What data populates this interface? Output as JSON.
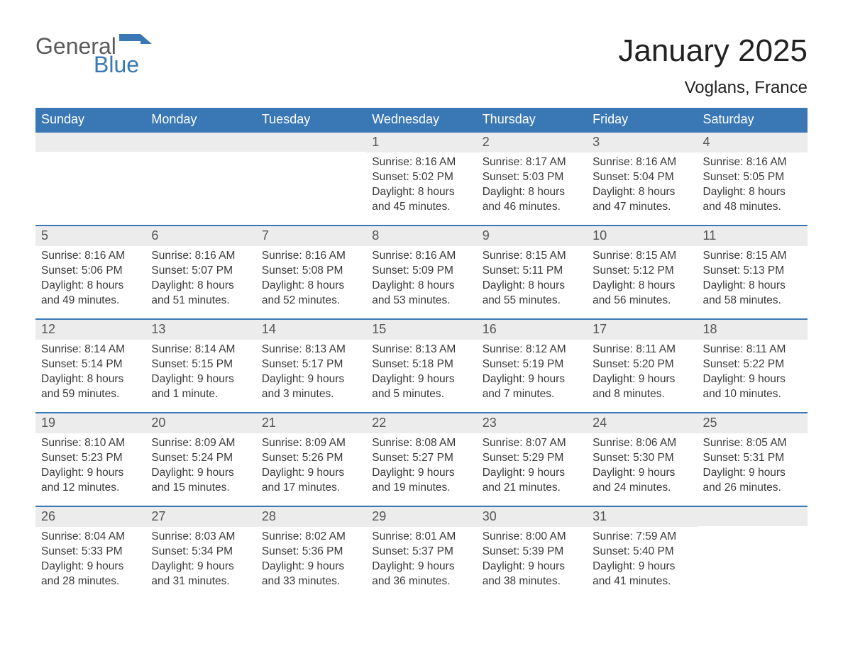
{
  "brand": {
    "top": "General",
    "bottom": "Blue",
    "icon_color": "#3a78b5"
  },
  "title": "January 2025",
  "subtitle": "Voglans, France",
  "colors": {
    "header_bg": "#3a78b5",
    "header_text": "#ffffff",
    "daynum_bg": "#ececec",
    "row_border": "#3a78b5",
    "body_text": "#3a3a3a"
  },
  "columns": [
    "Sunday",
    "Monday",
    "Tuesday",
    "Wednesday",
    "Thursday",
    "Friday",
    "Saturday"
  ],
  "weeks": [
    [
      null,
      null,
      null,
      {
        "n": "1",
        "sunrise": "8:16 AM",
        "sunset": "5:02 PM",
        "daylight": "8 hours and 45 minutes."
      },
      {
        "n": "2",
        "sunrise": "8:17 AM",
        "sunset": "5:03 PM",
        "daylight": "8 hours and 46 minutes."
      },
      {
        "n": "3",
        "sunrise": "8:16 AM",
        "sunset": "5:04 PM",
        "daylight": "8 hours and 47 minutes."
      },
      {
        "n": "4",
        "sunrise": "8:16 AM",
        "sunset": "5:05 PM",
        "daylight": "8 hours and 48 minutes."
      }
    ],
    [
      {
        "n": "5",
        "sunrise": "8:16 AM",
        "sunset": "5:06 PM",
        "daylight": "8 hours and 49 minutes."
      },
      {
        "n": "6",
        "sunrise": "8:16 AM",
        "sunset": "5:07 PM",
        "daylight": "8 hours and 51 minutes."
      },
      {
        "n": "7",
        "sunrise": "8:16 AM",
        "sunset": "5:08 PM",
        "daylight": "8 hours and 52 minutes."
      },
      {
        "n": "8",
        "sunrise": "8:16 AM",
        "sunset": "5:09 PM",
        "daylight": "8 hours and 53 minutes."
      },
      {
        "n": "9",
        "sunrise": "8:15 AM",
        "sunset": "5:11 PM",
        "daylight": "8 hours and 55 minutes."
      },
      {
        "n": "10",
        "sunrise": "8:15 AM",
        "sunset": "5:12 PM",
        "daylight": "8 hours and 56 minutes."
      },
      {
        "n": "11",
        "sunrise": "8:15 AM",
        "sunset": "5:13 PM",
        "daylight": "8 hours and 58 minutes."
      }
    ],
    [
      {
        "n": "12",
        "sunrise": "8:14 AM",
        "sunset": "5:14 PM",
        "daylight": "8 hours and 59 minutes."
      },
      {
        "n": "13",
        "sunrise": "8:14 AM",
        "sunset": "5:15 PM",
        "daylight": "9 hours and 1 minute."
      },
      {
        "n": "14",
        "sunrise": "8:13 AM",
        "sunset": "5:17 PM",
        "daylight": "9 hours and 3 minutes."
      },
      {
        "n": "15",
        "sunrise": "8:13 AM",
        "sunset": "5:18 PM",
        "daylight": "9 hours and 5 minutes."
      },
      {
        "n": "16",
        "sunrise": "8:12 AM",
        "sunset": "5:19 PM",
        "daylight": "9 hours and 7 minutes."
      },
      {
        "n": "17",
        "sunrise": "8:11 AM",
        "sunset": "5:20 PM",
        "daylight": "9 hours and 8 minutes."
      },
      {
        "n": "18",
        "sunrise": "8:11 AM",
        "sunset": "5:22 PM",
        "daylight": "9 hours and 10 minutes."
      }
    ],
    [
      {
        "n": "19",
        "sunrise": "8:10 AM",
        "sunset": "5:23 PM",
        "daylight": "9 hours and 12 minutes."
      },
      {
        "n": "20",
        "sunrise": "8:09 AM",
        "sunset": "5:24 PM",
        "daylight": "9 hours and 15 minutes."
      },
      {
        "n": "21",
        "sunrise": "8:09 AM",
        "sunset": "5:26 PM",
        "daylight": "9 hours and 17 minutes."
      },
      {
        "n": "22",
        "sunrise": "8:08 AM",
        "sunset": "5:27 PM",
        "daylight": "9 hours and 19 minutes."
      },
      {
        "n": "23",
        "sunrise": "8:07 AM",
        "sunset": "5:29 PM",
        "daylight": "9 hours and 21 minutes."
      },
      {
        "n": "24",
        "sunrise": "8:06 AM",
        "sunset": "5:30 PM",
        "daylight": "9 hours and 24 minutes."
      },
      {
        "n": "25",
        "sunrise": "8:05 AM",
        "sunset": "5:31 PM",
        "daylight": "9 hours and 26 minutes."
      }
    ],
    [
      {
        "n": "26",
        "sunrise": "8:04 AM",
        "sunset": "5:33 PM",
        "daylight": "9 hours and 28 minutes."
      },
      {
        "n": "27",
        "sunrise": "8:03 AM",
        "sunset": "5:34 PM",
        "daylight": "9 hours and 31 minutes."
      },
      {
        "n": "28",
        "sunrise": "8:02 AM",
        "sunset": "5:36 PM",
        "daylight": "9 hours and 33 minutes."
      },
      {
        "n": "29",
        "sunrise": "8:01 AM",
        "sunset": "5:37 PM",
        "daylight": "9 hours and 36 minutes."
      },
      {
        "n": "30",
        "sunrise": "8:00 AM",
        "sunset": "5:39 PM",
        "daylight": "9 hours and 38 minutes."
      },
      {
        "n": "31",
        "sunrise": "7:59 AM",
        "sunset": "5:40 PM",
        "daylight": "9 hours and 41 minutes."
      },
      null
    ]
  ],
  "labels": {
    "sunrise": "Sunrise: ",
    "sunset": "Sunset: ",
    "daylight": "Daylight: "
  }
}
